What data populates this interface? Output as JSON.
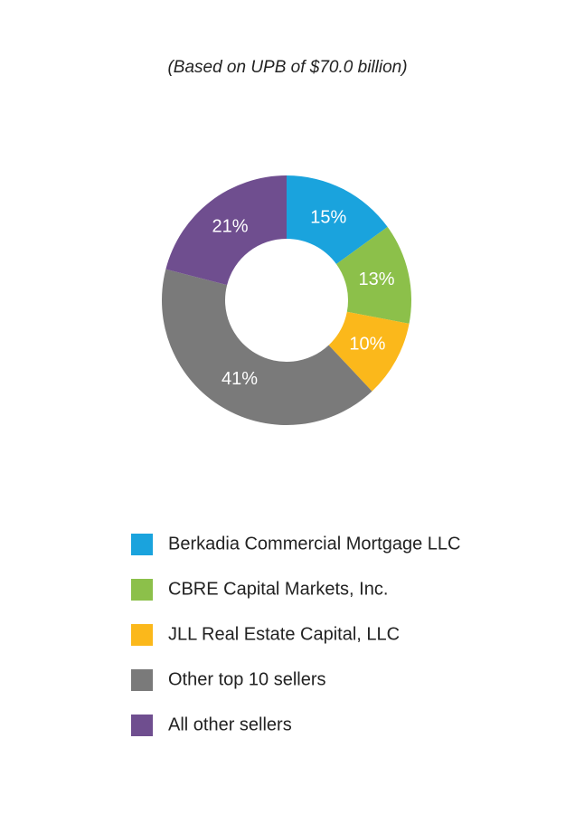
{
  "chart_data": {
    "type": "pie",
    "title": "(Based on UPB of $70.0 billion)",
    "categories": [
      "Berkadia Commercial Mortgage LLC",
      "CBRE Capital Markets, Inc.",
      "JLL Real Estate Capital, LLC",
      "Other top 10 sellers",
      "All other sellers"
    ],
    "values": [
      15,
      13,
      10,
      41,
      21
    ],
    "value_labels": [
      "15%",
      "13%",
      "10%",
      "41%",
      "21%"
    ],
    "colors": [
      "#1aa3dd",
      "#8cc04a",
      "#fbb81b",
      "#7a7a7a",
      "#6f4e8f"
    ],
    "donut": true
  }
}
